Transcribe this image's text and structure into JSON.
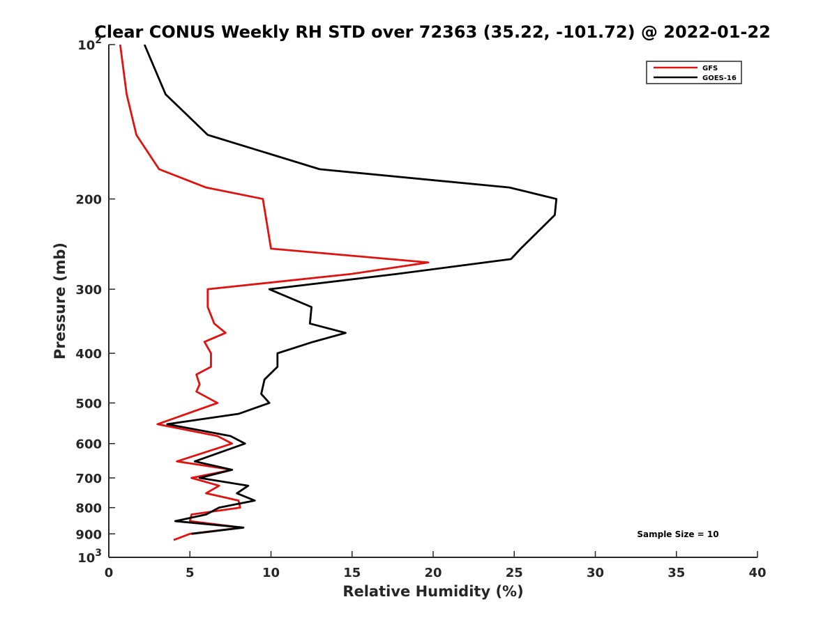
{
  "chart_data": {
    "type": "line",
    "title": "Clear CONUS Weekly RH STD over 72363 (35.22, -101.72) @ 2022-01-22",
    "xlabel": "Relative Humidity (%)",
    "ylabel": "Pressure (mb)",
    "xlim": [
      0,
      40
    ],
    "ylim": [
      100,
      1000
    ],
    "yscale": "log",
    "yreversed": true,
    "x_ticks": [
      0,
      5,
      10,
      15,
      20,
      25,
      30,
      35,
      40
    ],
    "x_tick_labels": [
      "0",
      "5",
      "10",
      "15",
      "20",
      "25",
      "30",
      "35",
      "40"
    ],
    "y_ticks": [
      100,
      200,
      300,
      400,
      500,
      600,
      700,
      800,
      900,
      1000
    ],
    "y_tick_labels": [
      {
        "base": "10",
        "exp": "2"
      },
      {
        "base": "200",
        "exp": ""
      },
      {
        "base": "300",
        "exp": ""
      },
      {
        "base": "400",
        "exp": ""
      },
      {
        "base": "500",
        "exp": ""
      },
      {
        "base": "600",
        "exp": ""
      },
      {
        "base": "700",
        "exp": ""
      },
      {
        "base": "800",
        "exp": ""
      },
      {
        "base": "900",
        "exp": ""
      },
      {
        "base": "10",
        "exp": "3"
      }
    ],
    "grid": false,
    "legend_position": "top-right",
    "annotation": "Sample Size = 10",
    "series": [
      {
        "name": "GFS",
        "color": "#e0120f",
        "points": [
          [
            0.7,
            100
          ],
          [
            1.1,
            125
          ],
          [
            1.7,
            150
          ],
          [
            3.1,
            175
          ],
          [
            6.0,
            190
          ],
          [
            9.5,
            200
          ],
          [
            10.0,
            250
          ],
          [
            19.7,
            266
          ],
          [
            15.0,
            280
          ],
          [
            6.1,
            300
          ],
          [
            6.1,
            325
          ],
          [
            6.5,
            350
          ],
          [
            7.2,
            365
          ],
          [
            5.9,
            380
          ],
          [
            6.3,
            400
          ],
          [
            6.3,
            425
          ],
          [
            5.4,
            440
          ],
          [
            5.6,
            460
          ],
          [
            5.4,
            475
          ],
          [
            6.7,
            500
          ],
          [
            3.0,
            550
          ],
          [
            6.7,
            580
          ],
          [
            7.6,
            600
          ],
          [
            4.2,
            650
          ],
          [
            7.6,
            675
          ],
          [
            5.1,
            700
          ],
          [
            6.8,
            725
          ],
          [
            6.0,
            750
          ],
          [
            8.0,
            775
          ],
          [
            8.1,
            800
          ],
          [
            5.1,
            825
          ],
          [
            5.0,
            850
          ],
          [
            8.2,
            875
          ],
          [
            5.0,
            900
          ],
          [
            4.0,
            925
          ]
        ]
      },
      {
        "name": "GOES-16",
        "color": "#000000",
        "points": [
          [
            2.2,
            100
          ],
          [
            3.5,
            125
          ],
          [
            6.1,
            150
          ],
          [
            13.0,
            175
          ],
          [
            24.7,
            190
          ],
          [
            27.6,
            200
          ],
          [
            27.5,
            215
          ],
          [
            25.4,
            250
          ],
          [
            24.8,
            262
          ],
          [
            17.8,
            280
          ],
          [
            9.9,
            300
          ],
          [
            12.5,
            325
          ],
          [
            12.4,
            350
          ],
          [
            14.6,
            365
          ],
          [
            12.6,
            380
          ],
          [
            10.4,
            400
          ],
          [
            10.4,
            425
          ],
          [
            9.6,
            450
          ],
          [
            9.4,
            480
          ],
          [
            9.9,
            500
          ],
          [
            8.0,
            525
          ],
          [
            3.6,
            550
          ],
          [
            7.5,
            580
          ],
          [
            8.4,
            600
          ],
          [
            5.3,
            650
          ],
          [
            7.6,
            675
          ],
          [
            5.6,
            700
          ],
          [
            8.6,
            725
          ],
          [
            7.9,
            750
          ],
          [
            9.0,
            775
          ],
          [
            6.8,
            800
          ],
          [
            6.0,
            825
          ],
          [
            4.1,
            850
          ],
          [
            8.3,
            875
          ],
          [
            5.1,
            900
          ]
        ]
      }
    ]
  }
}
